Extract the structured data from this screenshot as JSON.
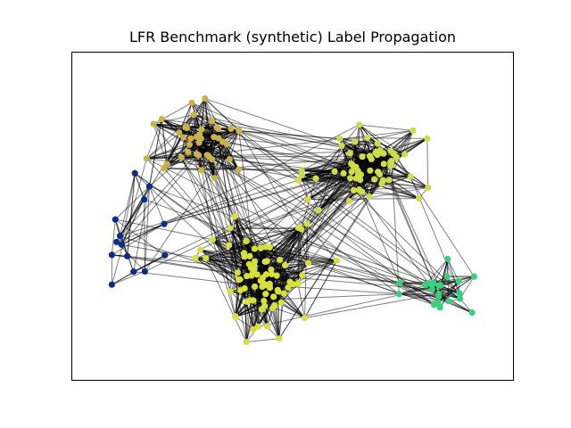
{
  "figure": {
    "title": "LFR Benchmark (synthetic) Label Propagation"
  },
  "chart_data": {
    "type": "network",
    "title": "LFR Benchmark (synthetic) Label Propagation",
    "edge_color": "#000000",
    "edge_alpha": 0.5,
    "communities": [
      {
        "id": "navy-community",
        "color": "#0d2b8c",
        "approx_node_count": 14
      },
      {
        "id": "olive-community",
        "color": "#c9b24a",
        "approx_node_count": 40
      },
      {
        "id": "lime-community-a",
        "color": "#cfdc4a",
        "approx_node_count": 60
      },
      {
        "id": "lime-community-b",
        "color": "#d7e03a",
        "approx_node_count": 80
      },
      {
        "id": "green-community",
        "color": "#35d17f",
        "approx_node_count": 22
      }
    ],
    "axes_visible": false
  }
}
